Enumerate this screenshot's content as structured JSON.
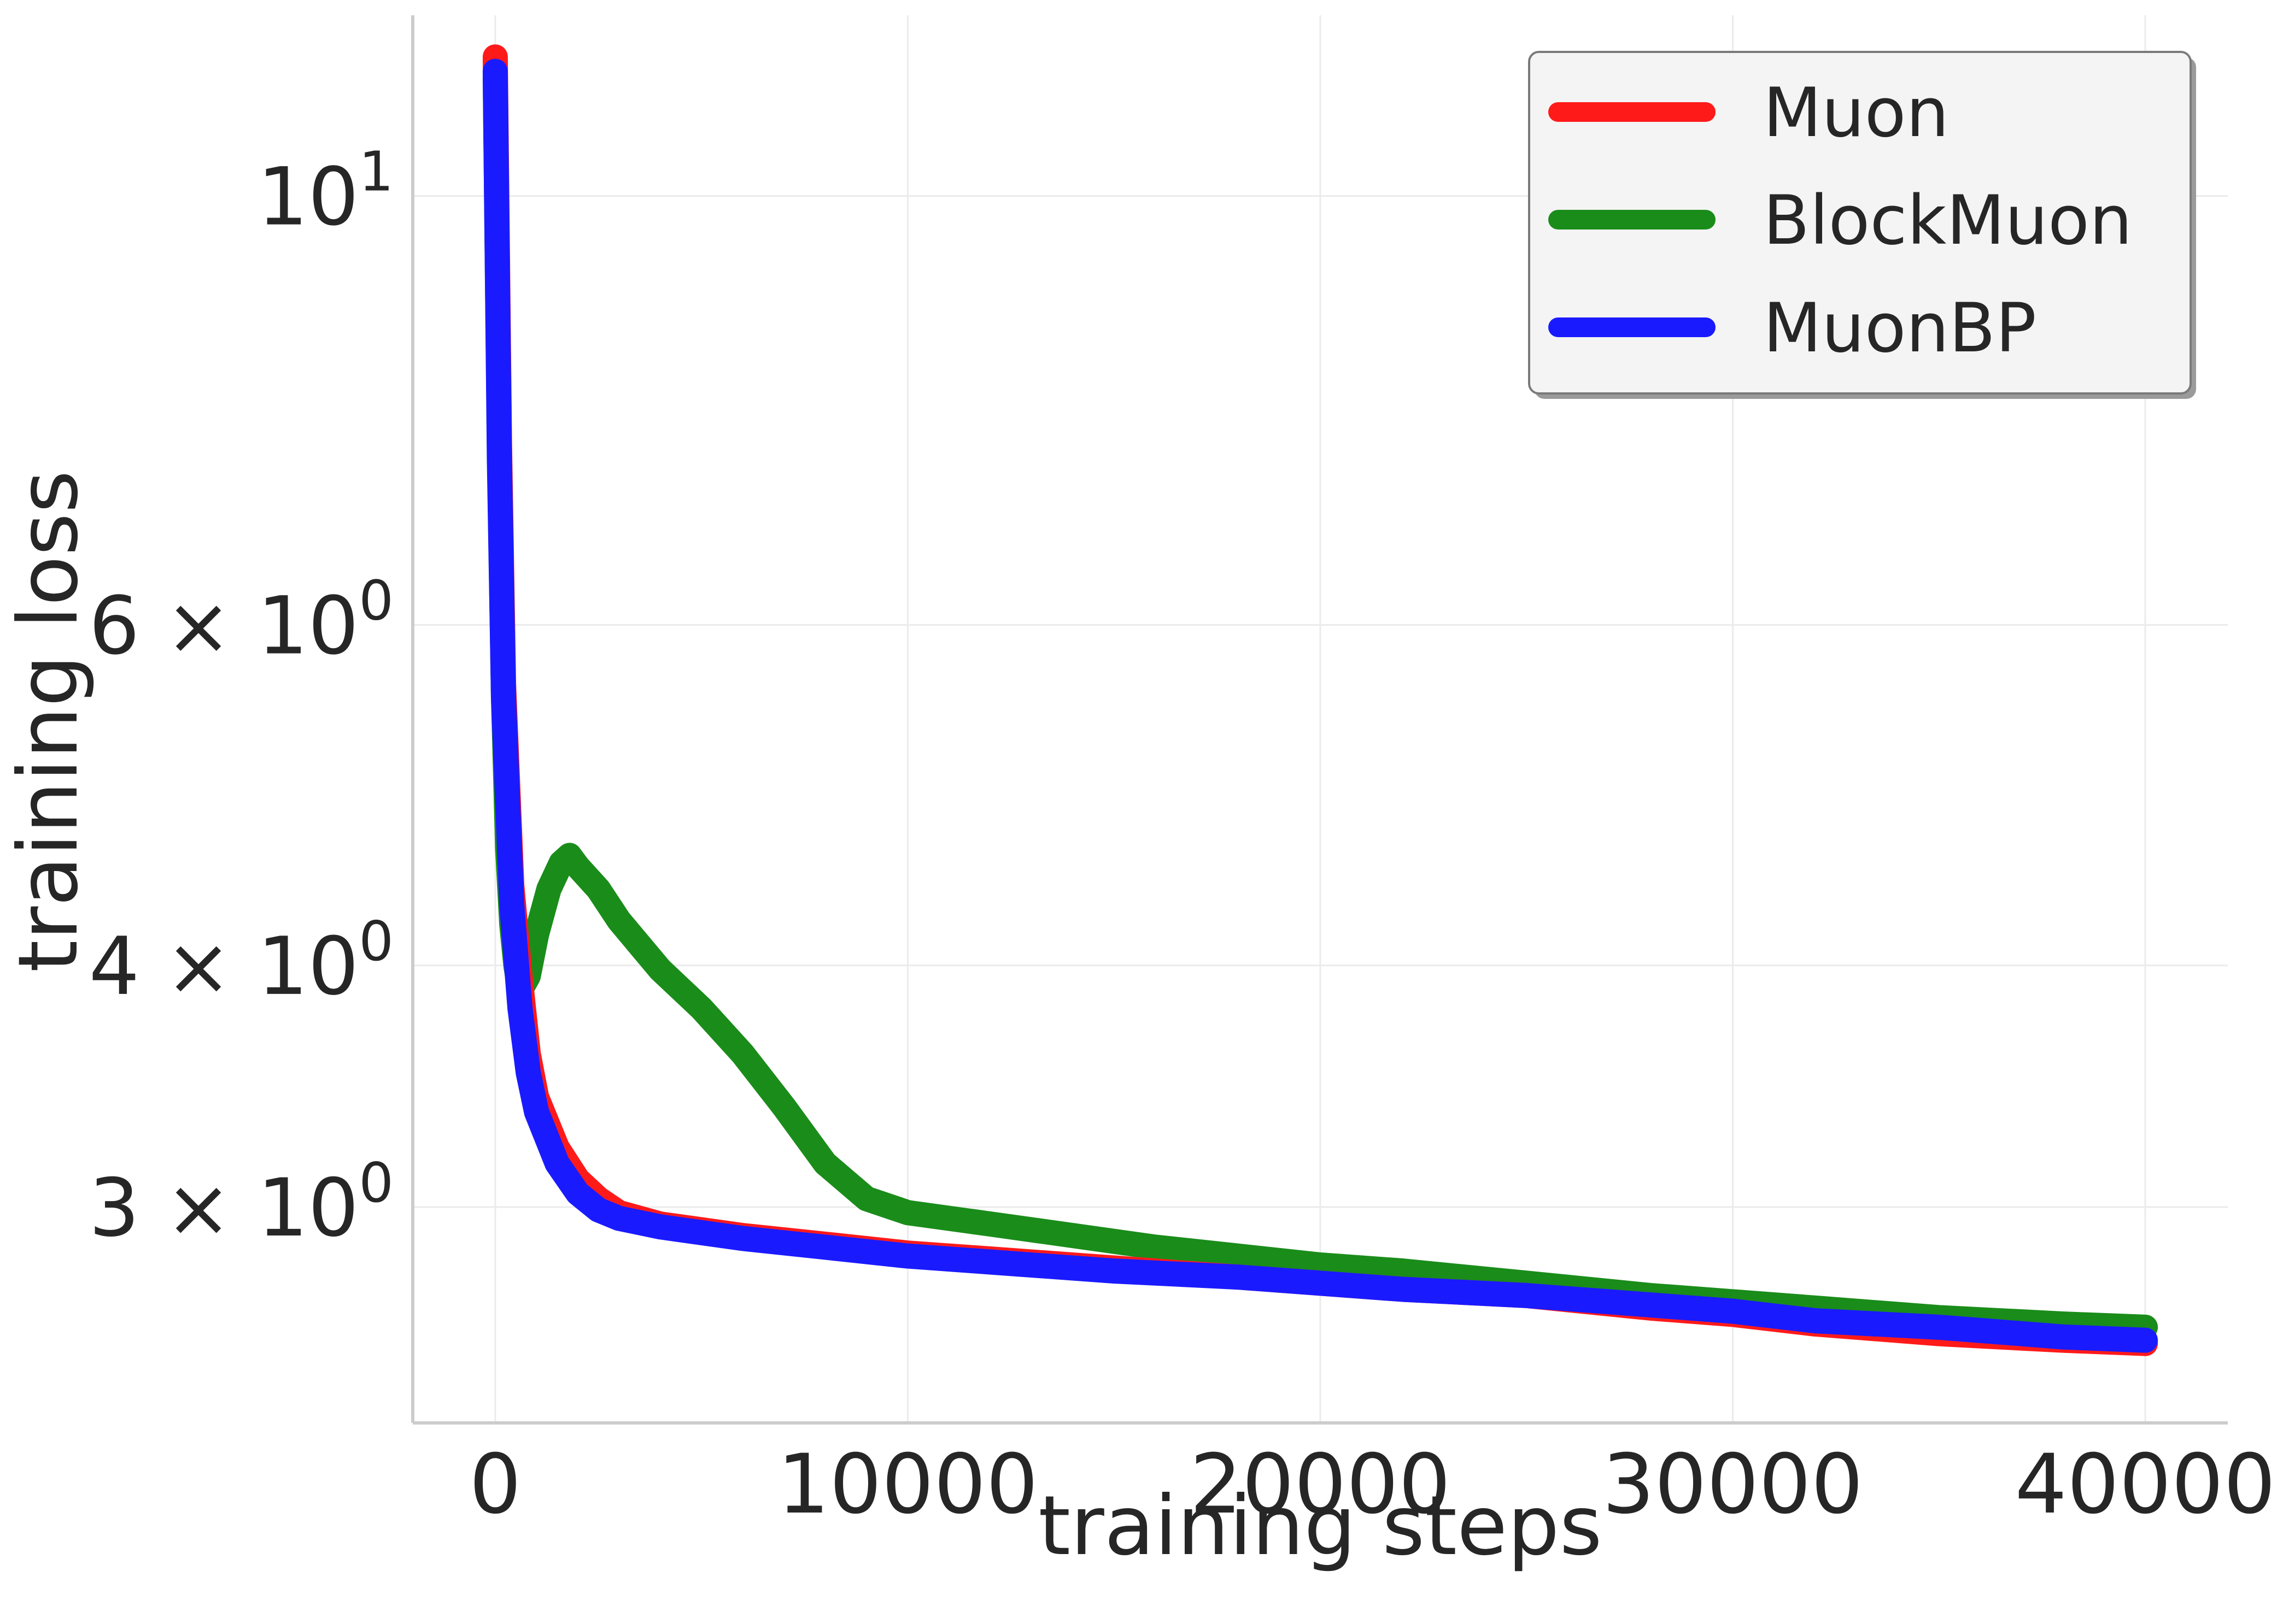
{
  "chart_data": {
    "type": "line",
    "title": "",
    "xlabel": "training steps",
    "ylabel": "training loss",
    "xlim": [
      -2000,
      42000
    ],
    "ylim": [
      2.32,
      12.4
    ],
    "yscale": "log",
    "grid": true,
    "legend_position": "top-right",
    "x_ticks": [
      {
        "value": 0,
        "label": "0"
      },
      {
        "value": 10000,
        "label": "10000"
      },
      {
        "value": 20000,
        "label": "20000"
      },
      {
        "value": 30000,
        "label": "30000"
      },
      {
        "value": 40000,
        "label": "40000"
      }
    ],
    "y_ticks": [
      {
        "value": 10,
        "base": "10",
        "exp": "1",
        "prefix": ""
      },
      {
        "value": 6,
        "base": "10",
        "exp": "0",
        "prefix": "6 × "
      },
      {
        "value": 4,
        "base": "10",
        "exp": "0",
        "prefix": "4 × "
      },
      {
        "value": 3,
        "base": "10",
        "exp": "0",
        "prefix": "3 × "
      }
    ],
    "series": [
      {
        "name": "Muon",
        "color": "#ff1a1a",
        "x": [
          0,
          100,
          200,
          400,
          600,
          800,
          1000,
          1500,
          2000,
          2500,
          3000,
          4000,
          5000,
          6000,
          8000,
          10000,
          12000,
          15000,
          18000,
          20000,
          22000,
          25000,
          28000,
          30000,
          32000,
          35000,
          38000,
          40000
        ],
        "y": [
          11.8,
          7.5,
          5.6,
          4.4,
          3.95,
          3.6,
          3.42,
          3.22,
          3.1,
          3.03,
          2.98,
          2.94,
          2.92,
          2.9,
          2.87,
          2.84,
          2.82,
          2.79,
          2.76,
          2.74,
          2.72,
          2.7,
          2.66,
          2.64,
          2.61,
          2.58,
          2.56,
          2.55
        ]
      },
      {
        "name": "BlockMuon",
        "color": "#1a8c1a",
        "x": [
          0,
          100,
          200,
          300,
          400,
          500,
          600,
          800,
          1000,
          1300,
          1600,
          1800,
          2000,
          2500,
          3000,
          4000,
          5000,
          6000,
          7000,
          8000,
          9000,
          10000,
          12000,
          14000,
          16000,
          18000,
          20000,
          22000,
          25000,
          28000,
          30000,
          32000,
          35000,
          38000,
          40000
        ],
        "y": [
          11.5,
          7.4,
          5.5,
          4.6,
          4.2,
          4.0,
          3.88,
          3.95,
          4.15,
          4.38,
          4.52,
          4.56,
          4.5,
          4.38,
          4.22,
          3.98,
          3.8,
          3.6,
          3.38,
          3.16,
          3.03,
          2.98,
          2.94,
          2.9,
          2.86,
          2.83,
          2.8,
          2.78,
          2.74,
          2.7,
          2.68,
          2.66,
          2.63,
          2.61,
          2.6
        ]
      },
      {
        "name": "MuonBP",
        "color": "#1a1aff",
        "x": [
          0,
          100,
          200,
          400,
          600,
          800,
          1000,
          1500,
          2000,
          2500,
          3000,
          4000,
          5000,
          6000,
          8000,
          10000,
          12000,
          15000,
          18000,
          20000,
          22000,
          25000,
          28000,
          30000,
          32000,
          35000,
          38000,
          40000
        ],
        "y": [
          11.6,
          7.3,
          5.5,
          4.3,
          3.8,
          3.52,
          3.36,
          3.16,
          3.05,
          2.99,
          2.96,
          2.93,
          2.91,
          2.89,
          2.86,
          2.83,
          2.81,
          2.78,
          2.76,
          2.74,
          2.72,
          2.7,
          2.67,
          2.65,
          2.62,
          2.6,
          2.57,
          2.56
        ]
      }
    ]
  }
}
